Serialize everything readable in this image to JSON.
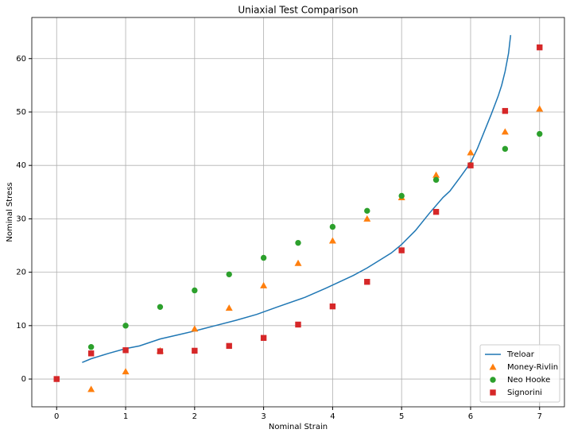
{
  "chart_data": {
    "type": "scatter",
    "title": "Uniaxial Test Comparison",
    "x_label": "Nominal Strain",
    "y_label": "Nominal Stress",
    "xlim": [
      -0.36,
      7.36
    ],
    "ylim": [
      -5.2,
      67.7
    ],
    "xticks": [
      0,
      1,
      2,
      3,
      4,
      5,
      6,
      7
    ],
    "yticks": [
      0,
      10,
      20,
      30,
      40,
      50,
      60
    ],
    "grid": true,
    "legend": "lower-right",
    "series": [
      {
        "name": "Treloar",
        "color": "#1f77b4",
        "style": "line",
        "x": [
          0.37,
          0.5,
          0.75,
          1,
          1.2,
          1.5,
          1.8,
          2,
          2.3,
          2.6,
          2.9,
          3.2,
          3.6,
          3.9,
          4.3,
          4.5,
          4.7,
          4.85,
          5.0,
          5.2,
          5.4,
          5.6,
          5.7,
          5.85,
          6.0,
          6.1,
          6.2,
          6.3,
          6.4,
          6.45,
          6.5,
          6.55,
          6.58
        ],
        "values": [
          3.1,
          3.8,
          4.8,
          5.7,
          6.2,
          7.5,
          8.4,
          9.0,
          10.0,
          11.0,
          12.1,
          13.5,
          15.3,
          17.0,
          19.4,
          20.8,
          22.4,
          23.6,
          25.2,
          27.8,
          31.0,
          34.0,
          35.2,
          37.8,
          40.5,
          43.2,
          46.4,
          49.6,
          53.0,
          55.0,
          57.6,
          61.0,
          64.4
        ]
      },
      {
        "name": "Money-Rivlin",
        "color": "#ff7f0e",
        "style": "triangle",
        "x": [
          0.5,
          1,
          1.5,
          2,
          2.5,
          3,
          3.5,
          4,
          4.5,
          5,
          5.5,
          6,
          6.5,
          7
        ],
        "values": [
          -1.9,
          1.4,
          5.3,
          9.4,
          13.3,
          17.5,
          21.7,
          25.9,
          30.0,
          34.0,
          38.2,
          42.4,
          46.3,
          50.6
        ]
      },
      {
        "name": "Neo Hooke",
        "color": "#2ca02c",
        "style": "circle",
        "x": [
          0.5,
          1,
          1.5,
          2,
          2.5,
          3,
          3.5,
          4,
          4.5,
          5,
          5.5,
          6,
          6.5,
          7
        ],
        "values": [
          6.0,
          10.0,
          13.5,
          16.6,
          19.6,
          22.7,
          25.5,
          28.5,
          31.5,
          34.3,
          37.3,
          40.1,
          43.1,
          45.9
        ]
      },
      {
        "name": "Signorini",
        "color": "#d62728",
        "style": "square",
        "x": [
          0,
          0.5,
          1,
          1.5,
          2,
          2.5,
          3,
          3.5,
          4,
          4.5,
          5,
          5.5,
          6,
          6.5,
          7
        ],
        "values": [
          0,
          4.8,
          5.4,
          5.2,
          5.3,
          6.2,
          7.7,
          10.2,
          13.6,
          18.2,
          24.1,
          31.3,
          40.0,
          50.2,
          62.1
        ]
      }
    ]
  }
}
